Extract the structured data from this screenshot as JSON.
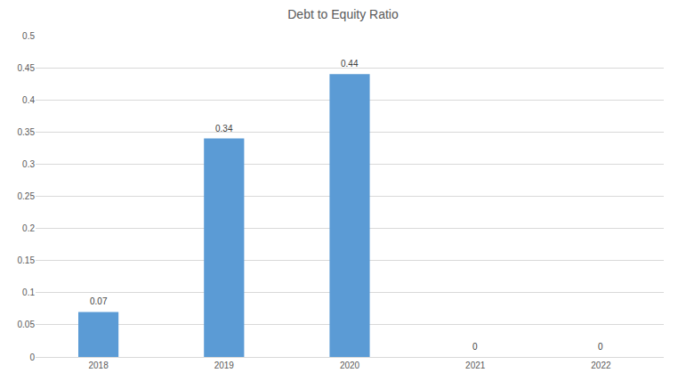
{
  "chart_data": {
    "type": "bar",
    "title": "Debt to Equity Ratio",
    "categories": [
      "2018",
      "2019",
      "2020",
      "2021",
      "2022"
    ],
    "values": [
      0.07,
      0.34,
      0.44,
      0,
      0
    ],
    "color": "#5b9bd5",
    "ylim": [
      0,
      0.5
    ],
    "yticks": [
      0,
      0.05,
      0.1,
      0.15,
      0.2,
      0.25,
      0.3,
      0.35,
      0.4,
      0.45,
      0.5
    ],
    "grid": true,
    "data_labels": true
  }
}
